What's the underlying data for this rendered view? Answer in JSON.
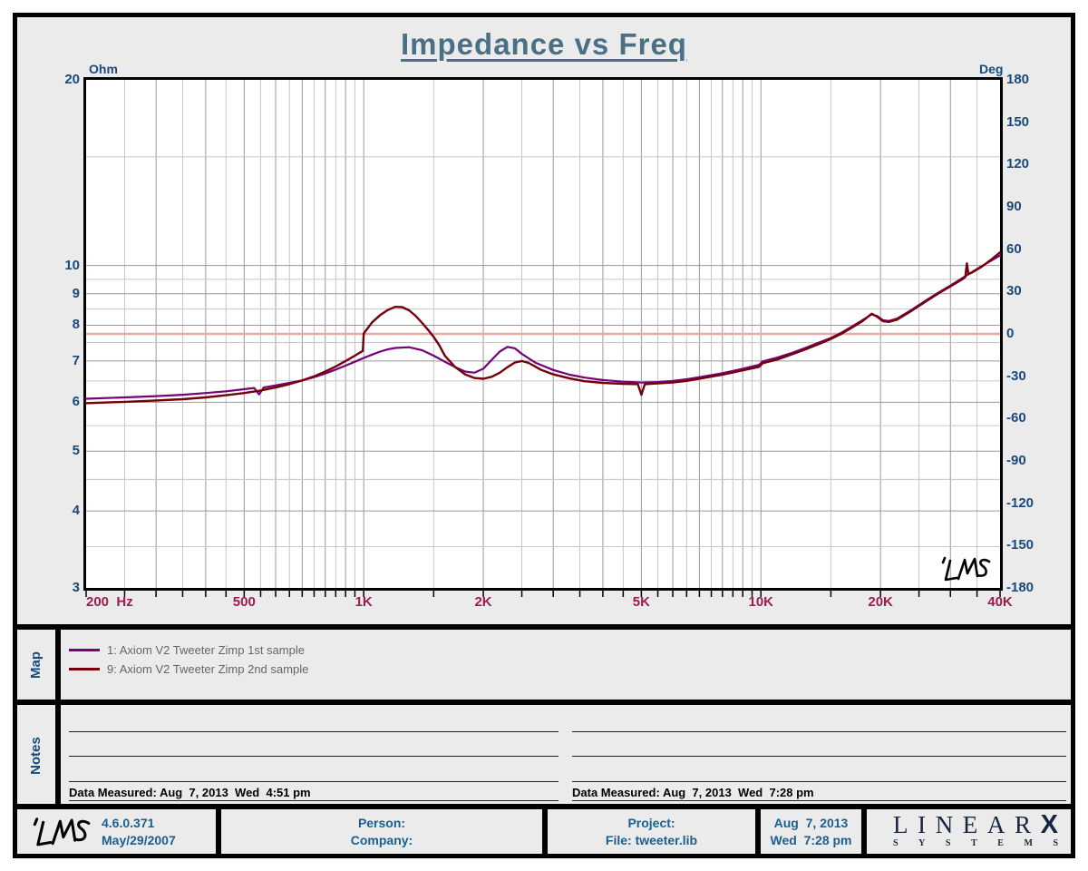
{
  "title": "Impedance vs Freq",
  "chart_data": {
    "type": "line",
    "title": "Impedance vs Freq",
    "x_axis": {
      "unit": "Hz",
      "scale": "log",
      "min": 200,
      "max": 40000,
      "tick_labels": [
        {
          "f": 200,
          "text": "200  Hz"
        },
        {
          "f": 500,
          "text": "500"
        },
        {
          "f": 1000,
          "text": "1K"
        },
        {
          "f": 2000,
          "text": "2K"
        },
        {
          "f": 5000,
          "text": "5K"
        },
        {
          "f": 10000,
          "text": "10K"
        },
        {
          "f": 20000,
          "text": "20K"
        },
        {
          "f": 40000,
          "text": "40K"
        }
      ],
      "grid_freqs": [
        250,
        300,
        350,
        400,
        450,
        500,
        550,
        600,
        650,
        700,
        750,
        800,
        850,
        900,
        950,
        1000,
        1500,
        2000,
        2500,
        3000,
        3500,
        4000,
        4500,
        5000,
        5500,
        6000,
        6500,
        7000,
        7500,
        8000,
        8500,
        9000,
        9500,
        10000,
        15000,
        20000,
        25000,
        30000,
        35000
      ],
      "major_freqs": [
        300,
        400,
        500,
        600,
        700,
        800,
        900,
        1000,
        2000,
        3000,
        4000,
        5000,
        6000,
        7000,
        8000,
        9000,
        10000,
        20000,
        30000
      ]
    },
    "y_axis_left": {
      "unit": "Ohm",
      "scale": "log",
      "min": 3,
      "max": 20,
      "ticks": [
        20,
        10,
        9,
        8,
        7,
        6,
        5,
        4,
        3
      ],
      "grid_ohms": [
        3.5,
        4,
        4.5,
        5,
        5.5,
        6,
        6.5,
        7,
        7.5,
        8,
        8.5,
        9,
        9.5,
        10,
        15
      ],
      "major_ohms": [
        4,
        5,
        6,
        7,
        8,
        9,
        10
      ]
    },
    "y_axis_right": {
      "unit": "Deg",
      "scale": "linear",
      "min": -180,
      "max": 180,
      "ticks": [
        180,
        150,
        120,
        90,
        60,
        30,
        0,
        -30,
        -60,
        -90,
        -120,
        -150,
        -180
      ],
      "zero_line_deg": 0
    },
    "series": [
      {
        "name": "1: Axiom V2 Tweeter Zimp 1st sample",
        "color": "#76007a",
        "width": 2.2,
        "points": [
          [
            200,
            6.08
          ],
          [
            250,
            6.11
          ],
          [
            300,
            6.14
          ],
          [
            350,
            6.17
          ],
          [
            400,
            6.21
          ],
          [
            450,
            6.25
          ],
          [
            500,
            6.3
          ],
          [
            530,
            6.33
          ],
          [
            545,
            6.18
          ],
          [
            560,
            6.34
          ],
          [
            600,
            6.39
          ],
          [
            650,
            6.45
          ],
          [
            700,
            6.51
          ],
          [
            750,
            6.59
          ],
          [
            800,
            6.68
          ],
          [
            850,
            6.78
          ],
          [
            900,
            6.88
          ],
          [
            950,
            6.98
          ],
          [
            1000,
            7.08
          ],
          [
            1050,
            7.17
          ],
          [
            1100,
            7.25
          ],
          [
            1150,
            7.31
          ],
          [
            1200,
            7.35
          ],
          [
            1300,
            7.37
          ],
          [
            1400,
            7.29
          ],
          [
            1500,
            7.14
          ],
          [
            1600,
            6.98
          ],
          [
            1700,
            6.84
          ],
          [
            1800,
            6.73
          ],
          [
            1900,
            6.7
          ],
          [
            2000,
            6.8
          ],
          [
            2100,
            7.03
          ],
          [
            2200,
            7.25
          ],
          [
            2300,
            7.38
          ],
          [
            2400,
            7.34
          ],
          [
            2500,
            7.19
          ],
          [
            2700,
            6.96
          ],
          [
            3000,
            6.77
          ],
          [
            3300,
            6.65
          ],
          [
            3600,
            6.58
          ],
          [
            4000,
            6.52
          ],
          [
            4500,
            6.48
          ],
          [
            5000,
            6.46
          ],
          [
            5500,
            6.47
          ],
          [
            6000,
            6.5
          ],
          [
            6500,
            6.54
          ],
          [
            7000,
            6.59
          ],
          [
            8000,
            6.69
          ],
          [
            9000,
            6.8
          ],
          [
            9900,
            6.9
          ],
          [
            10100,
            6.99
          ],
          [
            11000,
            7.09
          ],
          [
            12000,
            7.22
          ],
          [
            13000,
            7.36
          ],
          [
            14000,
            7.5
          ],
          [
            15000,
            7.63
          ],
          [
            16000,
            7.79
          ],
          [
            17000,
            7.97
          ],
          [
            18000,
            8.15
          ],
          [
            19000,
            8.33
          ],
          [
            19600,
            8.28
          ],
          [
            20300,
            8.15
          ],
          [
            21000,
            8.13
          ],
          [
            22000,
            8.2
          ],
          [
            24000,
            8.48
          ],
          [
            26000,
            8.77
          ],
          [
            28000,
            9.04
          ],
          [
            30000,
            9.28
          ],
          [
            32000,
            9.52
          ],
          [
            34000,
            9.76
          ],
          [
            36000,
            9.98
          ],
          [
            38000,
            10.18
          ],
          [
            40000,
            10.38
          ]
        ]
      },
      {
        "name": "9: Axiom V2 Tweeter Zimp 2nd sample",
        "color": "#730008",
        "width": 2.4,
        "points": [
          [
            200,
            5.98
          ],
          [
            250,
            6.01
          ],
          [
            300,
            6.04
          ],
          [
            350,
            6.07
          ],
          [
            400,
            6.11
          ],
          [
            450,
            6.16
          ],
          [
            500,
            6.21
          ],
          [
            550,
            6.27
          ],
          [
            600,
            6.34
          ],
          [
            650,
            6.42
          ],
          [
            700,
            6.51
          ],
          [
            750,
            6.61
          ],
          [
            800,
            6.73
          ],
          [
            850,
            6.86
          ],
          [
            900,
            7.0
          ],
          [
            950,
            7.14
          ],
          [
            995,
            7.27
          ],
          [
            1000,
            7.76
          ],
          [
            1050,
            8.09
          ],
          [
            1100,
            8.31
          ],
          [
            1150,
            8.47
          ],
          [
            1200,
            8.57
          ],
          [
            1250,
            8.56
          ],
          [
            1300,
            8.46
          ],
          [
            1350,
            8.29
          ],
          [
            1400,
            8.08
          ],
          [
            1450,
            7.87
          ],
          [
            1500,
            7.66
          ],
          [
            1550,
            7.42
          ],
          [
            1600,
            7.14
          ],
          [
            1700,
            6.84
          ],
          [
            1800,
            6.66
          ],
          [
            1900,
            6.57
          ],
          [
            2000,
            6.55
          ],
          [
            2100,
            6.6
          ],
          [
            2200,
            6.7
          ],
          [
            2300,
            6.84
          ],
          [
            2400,
            6.96
          ],
          [
            2500,
            7.0
          ],
          [
            2600,
            6.95
          ],
          [
            2700,
            6.86
          ],
          [
            2800,
            6.77
          ],
          [
            3000,
            6.66
          ],
          [
            3300,
            6.56
          ],
          [
            3600,
            6.49
          ],
          [
            4000,
            6.45
          ],
          [
            4500,
            6.43
          ],
          [
            4900,
            6.42
          ],
          [
            5000,
            6.17
          ],
          [
            5100,
            6.42
          ],
          [
            5500,
            6.44
          ],
          [
            6000,
            6.46
          ],
          [
            6500,
            6.5
          ],
          [
            7000,
            6.55
          ],
          [
            8000,
            6.65
          ],
          [
            9000,
            6.76
          ],
          [
            9900,
            6.85
          ],
          [
            10100,
            6.94
          ],
          [
            11000,
            7.04
          ],
          [
            12000,
            7.18
          ],
          [
            13000,
            7.32
          ],
          [
            14000,
            7.46
          ],
          [
            15000,
            7.6
          ],
          [
            16000,
            7.76
          ],
          [
            17000,
            7.94
          ],
          [
            18000,
            8.12
          ],
          [
            19000,
            8.35
          ],
          [
            19600,
            8.26
          ],
          [
            20300,
            8.12
          ],
          [
            21000,
            8.1
          ],
          [
            22000,
            8.17
          ],
          [
            24000,
            8.45
          ],
          [
            26000,
            8.74
          ],
          [
            28000,
            9.01
          ],
          [
            30000,
            9.25
          ],
          [
            32000,
            9.48
          ],
          [
            32700,
            9.58
          ],
          [
            33000,
            10.08
          ],
          [
            33300,
            9.68
          ],
          [
            34000,
            9.74
          ],
          [
            36000,
            9.96
          ],
          [
            38000,
            10.22
          ],
          [
            40000,
            10.5
          ]
        ]
      }
    ],
    "colors": {
      "grid_major": "#999999",
      "grid_minor": "#c6c6c6",
      "zero_deg_line": "#e4aba1"
    },
    "inplot_logo": "LMS"
  },
  "map_section": {
    "label": "Map",
    "legend": [
      {
        "color": "#76007a",
        "text": "1: Axiom V2 Tweeter Zimp 1st sample"
      },
      {
        "color": "#730008",
        "text": "9: Axiom V2 Tweeter Zimp 2nd sample"
      }
    ]
  },
  "notes_section": {
    "label": "Notes",
    "left_measured": "Data Measured: Aug  7, 2013  Wed  4:51 pm",
    "right_measured": "Data Measured: Aug  7, 2013  Wed  7:28 pm"
  },
  "footer": {
    "logo": "LMS",
    "version": "4.6.0.371",
    "version_date": "May/29/2007",
    "person_label": "Person:",
    "company_label": "Company:",
    "project_label": "Project:",
    "file_label": "File: tweeter.lib",
    "date": "Aug  7, 2013",
    "time": "Wed  7:28 pm",
    "brand_top": "LINEAR",
    "brand_x": "X",
    "brand_bottom": "SYSTEMS"
  }
}
